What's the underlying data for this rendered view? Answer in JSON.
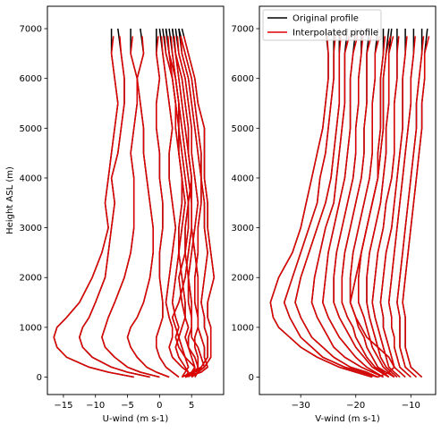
{
  "chart_data": [
    {
      "type": "line",
      "panel": "left",
      "xlabel": "U-wind (m s-1)",
      "ylabel": "Height ASL (m)",
      "xlim": [
        -17.5,
        10
      ],
      "ylim": [
        -350,
        7450
      ],
      "xticks": [
        -15,
        -10,
        -5,
        0,
        5
      ],
      "yticks": [
        0,
        1000,
        2000,
        3000,
        4000,
        5000,
        6000,
        7000
      ],
      "legend": null,
      "heights": [
        0,
        100,
        200,
        400,
        600,
        800,
        1000,
        1200,
        1500,
        2000,
        2500,
        3000,
        3500,
        4000,
        4500,
        5000,
        5500,
        6000,
        6500,
        7000
      ],
      "series_note": "each profile drawn twice: Original profile (black) beneath Interpolated profile (red)",
      "profiles": [
        [
          -4,
          -8,
          -11,
          -14.5,
          -16,
          -16.5,
          -16,
          -14.5,
          -12.5,
          -10.5,
          -9,
          -8,
          -8.5,
          -8,
          -7.5,
          -7,
          -6.5,
          -7,
          -7.5,
          -7.5
        ],
        [
          -1.5,
          -5,
          -7.5,
          -10.5,
          -12,
          -12.5,
          -12,
          -11,
          -10,
          -8.5,
          -8,
          -7.5,
          -7,
          -7.5,
          -6.5,
          -6,
          -5.5,
          -5.5,
          -6,
          -6.5
        ],
        [
          0,
          -3,
          -5,
          -7,
          -8.5,
          -9,
          -8.5,
          -8,
          -7,
          -5.5,
          -4.5,
          -4,
          -4,
          -4,
          -4.5,
          -4,
          -3.5,
          -3.5,
          -4.5,
          -4.5
        ],
        [
          1.5,
          -0.5,
          -2,
          -3.5,
          -4.5,
          -5,
          -4.5,
          -3.5,
          -2.5,
          -1.5,
          -1,
          -1,
          -1.5,
          -2,
          -2.5,
          -2.5,
          -3,
          -3.5,
          -2.5,
          -3
        ],
        [
          3,
          2,
          1,
          0,
          -0.5,
          -0.5,
          0,
          0.5,
          0.5,
          0,
          0,
          0.5,
          0.5,
          0,
          0,
          -0.5,
          -0.5,
          0,
          -0.5,
          -0.5
        ],
        [
          4,
          4.5,
          3.5,
          2,
          1.5,
          2,
          2,
          1.5,
          1,
          1.5,
          2,
          2.5,
          2,
          1.5,
          1.5,
          2,
          1.5,
          1,
          0.5,
          0
        ],
        [
          4.5,
          5,
          5.5,
          4,
          3,
          2.5,
          3,
          2.5,
          2,
          2.5,
          3,
          3.5,
          4,
          3.5,
          3,
          3,
          2.5,
          2,
          1.5,
          1
        ],
        [
          4,
          5.5,
          6,
          5.5,
          4.5,
          4,
          4.5,
          4,
          3.5,
          3,
          4,
          4.5,
          4.5,
          5,
          4.5,
          4,
          3.5,
          3,
          2.5,
          2
        ],
        [
          5,
          6,
          7,
          6.5,
          6,
          5,
          5,
          5,
          4.5,
          4.5,
          5,
          5.5,
          6,
          5.5,
          5,
          5,
          4.5,
          4,
          3,
          2.5
        ],
        [
          4,
          6.5,
          7.5,
          7,
          7,
          6.5,
          6,
          6,
          5.5,
          5.5,
          6,
          6,
          6.5,
          6.5,
          6,
          5.5,
          5,
          4.5,
          3.5,
          3
        ],
        [
          3.5,
          5,
          6.5,
          7.5,
          7.5,
          7.5,
          7,
          7,
          6.5,
          7,
          7.5,
          7,
          7,
          6.5,
          6.5,
          6,
          5.5,
          5,
          4,
          3
        ],
        [
          4,
          5.5,
          7,
          8,
          8,
          8,
          8,
          7.5,
          7.5,
          8.5,
          8,
          7.5,
          7.5,
          7,
          7,
          7,
          6,
          5.5,
          4.5,
          3.5
        ],
        [
          3.5,
          4,
          4.5,
          4,
          3.5,
          3,
          2.5,
          2,
          3,
          4,
          4.5,
          5,
          5,
          4.5,
          4,
          3.5,
          3,
          2.5,
          2,
          1.5
        ],
        [
          4.5,
          4.5,
          4,
          3,
          2.5,
          3,
          3.5,
          4,
          4,
          3.5,
          3,
          3,
          3.5,
          3.5,
          3,
          2.5,
          2.5,
          2,
          1,
          0.5
        ],
        [
          5,
          5.5,
          5.5,
          5,
          4.5,
          4.5,
          5,
          5,
          5,
          4.5,
          4,
          4,
          4.5,
          4,
          3.5,
          3,
          3,
          2.5,
          1.5,
          1
        ],
        [
          5.5,
          6,
          6,
          6,
          5.5,
          5.5,
          6,
          6,
          6,
          6,
          5.5,
          5,
          5,
          5,
          4.5,
          4.5,
          4,
          3.5,
          2.5,
          2
        ]
      ]
    },
    {
      "type": "line",
      "panel": "right",
      "xlabel": "V-wind (m s-1)",
      "ylabel": "",
      "xlim": [
        -37.5,
        -5.5
      ],
      "ylim": [
        -350,
        7450
      ],
      "xticks": [
        -30,
        -20,
        -10
      ],
      "yticks": [
        0,
        1000,
        2000,
        3000,
        4000,
        5000,
        6000,
        7000
      ],
      "legend": {
        "position": "top-left",
        "entries": [
          {
            "name": "Original profile",
            "color": "#000000"
          },
          {
            "name": "Interpolated profile",
            "color": "#e00000"
          }
        ]
      },
      "heights": [
        0,
        100,
        200,
        400,
        600,
        800,
        1000,
        1200,
        1500,
        2000,
        2500,
        3000,
        3500,
        4000,
        4500,
        5000,
        5500,
        6000,
        6500,
        7000
      ],
      "profiles": [
        [
          -17,
          -20,
          -23,
          -27,
          -30,
          -32,
          -34,
          -35,
          -35.5,
          -34,
          -31.5,
          -30,
          -29,
          -28,
          -27,
          -26,
          -25.5,
          -25,
          -25,
          -25.5
        ],
        [
          -16,
          -19,
          -22,
          -26,
          -28,
          -30,
          -31,
          -32,
          -33,
          -31.5,
          -30,
          -28.5,
          -27,
          -26.5,
          -25.5,
          -25,
          -24.5,
          -24,
          -24,
          -24
        ],
        [
          -16,
          -18,
          -21,
          -24,
          -26,
          -28,
          -29,
          -30,
          -31,
          -30,
          -28.5,
          -27,
          -25.5,
          -24.5,
          -24,
          -23.5,
          -23,
          -23,
          -23,
          -23
        ],
        [
          -15,
          -17,
          -19,
          -22,
          -24,
          -25,
          -26,
          -27,
          -28,
          -27.5,
          -26.5,
          -25.5,
          -24,
          -23.5,
          -23,
          -22.5,
          -22,
          -22,
          -22,
          -21.5
        ],
        [
          -15,
          -16.5,
          -18,
          -20,
          -21.5,
          -23,
          -24,
          -25,
          -26,
          -25.5,
          -25,
          -24,
          -23,
          -22,
          -21.5,
          -21,
          -21,
          -21,
          -20.5,
          -20
        ],
        [
          -14,
          -15.5,
          -17,
          -18.5,
          -20,
          -21,
          -22,
          -23,
          -24,
          -24,
          -23.5,
          -22.5,
          -21.5,
          -20.5,
          -20,
          -20,
          -19.5,
          -19.5,
          -19,
          -19
        ],
        [
          -14,
          -15,
          -16.5,
          -18,
          -19,
          -20,
          -20.5,
          -21.5,
          -22.5,
          -22.5,
          -22,
          -21,
          -20,
          -19,
          -18.5,
          -18.5,
          -18,
          -18,
          -18,
          -17.5
        ],
        [
          -13,
          -14.5,
          -16,
          -17,
          -18,
          -18.5,
          -19.5,
          -20,
          -21,
          -21,
          -20.5,
          -19.5,
          -18.5,
          -17.5,
          -17,
          -17,
          -17,
          -16.5,
          -16.5,
          -16
        ],
        [
          -13,
          -14,
          -15,
          -16,
          -17,
          -17.5,
          -18,
          -18.5,
          -19.5,
          -19.5,
          -19,
          -18,
          -17,
          -16,
          -16,
          -15.5,
          -15.5,
          -15.5,
          -15,
          -15
        ],
        [
          -12.5,
          -13.5,
          -14.5,
          -15.5,
          -16,
          -16.5,
          -17,
          -17.5,
          -18,
          -18,
          -17.5,
          -16.5,
          -15.5,
          -15,
          -14.5,
          -14.5,
          -14,
          -14,
          -14,
          -13.5
        ],
        [
          -12,
          -13,
          -14,
          -14.5,
          -15,
          -15.5,
          -16,
          -16.5,
          -17,
          -16.5,
          -16,
          -15,
          -14.5,
          -13.5,
          -13,
          -13,
          -13,
          -12.5,
          -12.5,
          -12.5
        ],
        [
          -11,
          -12,
          -13,
          -13.5,
          -14,
          -14.5,
          -15,
          -15,
          -15.5,
          -15,
          -14.5,
          -13.5,
          -13,
          -12.5,
          -12,
          -11.5,
          -11.5,
          -11.5,
          -11,
          -11
        ],
        [
          -10,
          -11,
          -12,
          -12.5,
          -13,
          -13,
          -13.5,
          -13.5,
          -14,
          -13.5,
          -13,
          -12.5,
          -12,
          -11.5,
          -11,
          -10.5,
          -10,
          -10,
          -9.5,
          -9.5
        ],
        [
          -9,
          -10,
          -11,
          -11.5,
          -12,
          -12,
          -12,
          -12,
          -12.5,
          -12,
          -11.5,
          -11,
          -10.5,
          -10,
          -9.5,
          -9,
          -9,
          -8.5,
          -8,
          -8
        ],
        [
          -8,
          -9,
          -10,
          -10.5,
          -11,
          -11,
          -11,
          -11,
          -11.5,
          -11,
          -10.5,
          -10,
          -9.5,
          -9,
          -8.5,
          -8,
          -8,
          -7.5,
          -7.5,
          -7
        ],
        [
          -16,
          -14,
          -13,
          -14,
          -16,
          -18,
          -19,
          -20,
          -21,
          -20,
          -19,
          -18,
          -17,
          -16,
          -15.5,
          -15,
          -15,
          -15,
          -14.5,
          -14
        ]
      ]
    }
  ]
}
